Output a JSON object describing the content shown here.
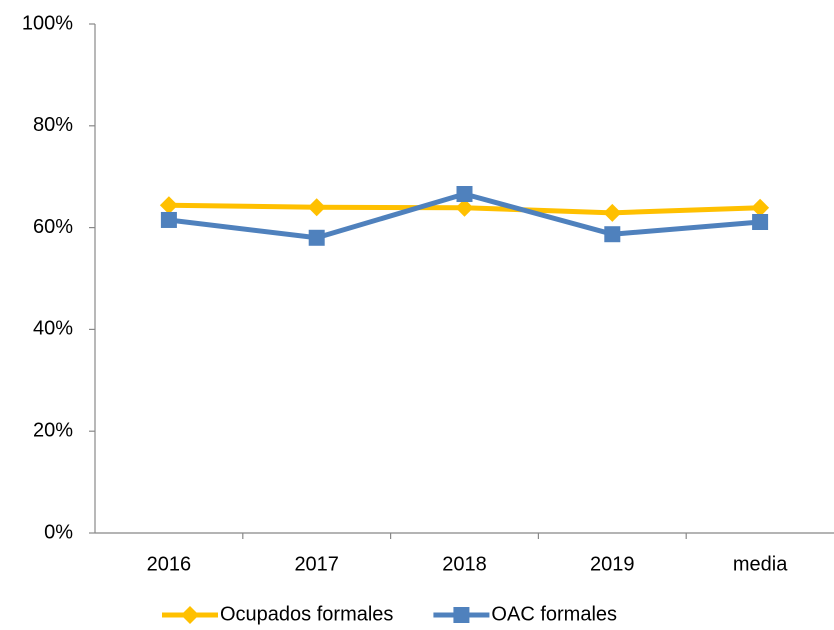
{
  "chart_data": {
    "type": "line",
    "categories": [
      "2016",
      "2017",
      "2018",
      "2019",
      "media"
    ],
    "series": [
      {
        "name": "Ocupados formales",
        "color": "#FFC000",
        "marker": "diamond",
        "values": [
          64.4,
          64.0,
          63.9,
          62.9,
          63.9
        ]
      },
      {
        "name": "OAC formales",
        "color": "#4F81BD",
        "marker": "square",
        "values": [
          61.5,
          58.0,
          66.6,
          58.7,
          61.1
        ]
      }
    ],
    "ylim": [
      0,
      100
    ],
    "yticks": [
      {
        "value": 0,
        "label": "0%"
      },
      {
        "value": 20,
        "label": "20%"
      },
      {
        "value": 40,
        "label": "40%"
      },
      {
        "value": 60,
        "label": "60%"
      },
      {
        "value": 80,
        "label": "80%"
      },
      {
        "value": 100,
        "label": "100%"
      }
    ],
    "grid": false,
    "legend": "bottom"
  }
}
